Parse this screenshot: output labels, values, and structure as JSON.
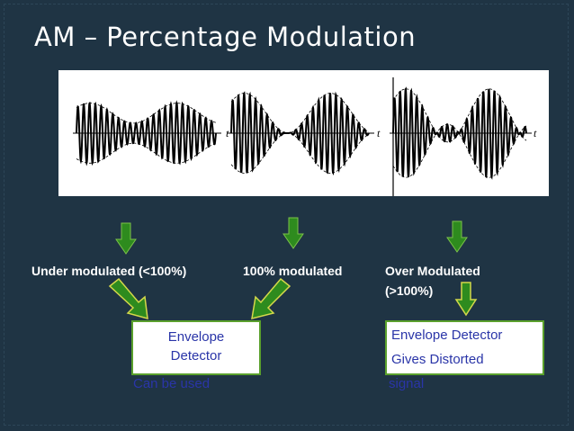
{
  "slide": {
    "title": "AM – Percentage Modulation",
    "waveform_axis_label": "t",
    "waveforms": [
      {
        "name": "under-modulated",
        "modulation_index": 0.5
      },
      {
        "name": "full-modulated",
        "modulation_index": 1.0
      },
      {
        "name": "over-modulated",
        "modulation_index": 1.5
      }
    ],
    "labels": {
      "under": "Under modulated (<100%)",
      "full": "100% modulated",
      "over_line1": "Over Modulated",
      "over_line2": "(>100%)"
    },
    "envelope_box": {
      "line1": "Envelope",
      "line2": "Detector",
      "overflow": "Can be used"
    },
    "distorted_box": {
      "line1": "Envelope Detector",
      "line2": "Gives Distorted",
      "overflow": "signal"
    },
    "colors": {
      "background": "#1f3444",
      "arrow_fill": "#2e8b1e",
      "box_border": "#5aa02c",
      "box_text": "#2a35a8"
    },
    "icons": [
      "arrow-down-icon",
      "arrow-down-right-icon",
      "arrow-down-left-icon"
    ]
  }
}
